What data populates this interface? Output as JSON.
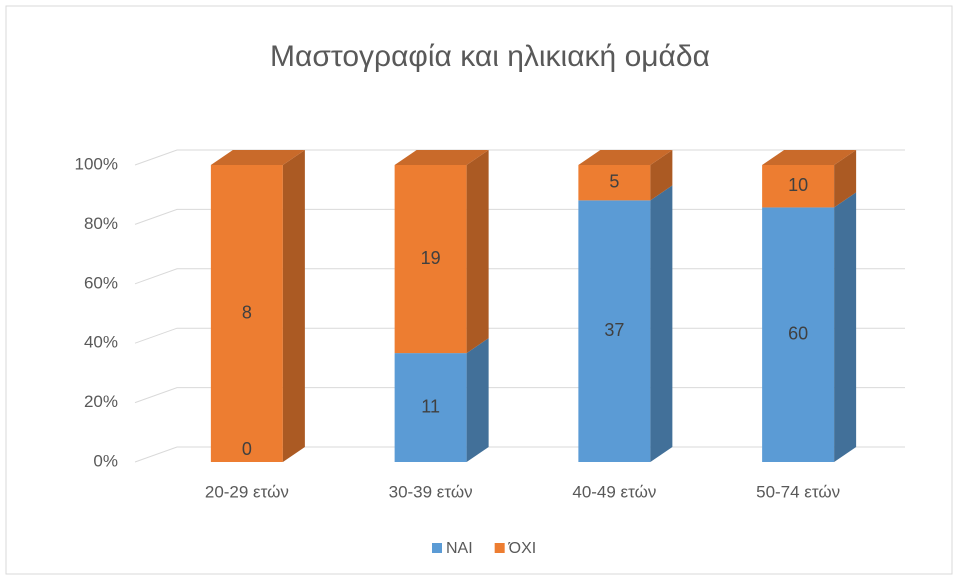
{
  "chart_data": {
    "type": "bar",
    "stacking": "percent",
    "title": "Μαστογραφία και ηλικιακή ομάδα",
    "categories": [
      "20-29 ετών",
      "30-39 ετών",
      "40-49 ετών",
      "50-74 ετών"
    ],
    "series": [
      {
        "name": "ΝΑΙ",
        "color": "#5b9bd5",
        "values": [
          0,
          11,
          37,
          60
        ]
      },
      {
        "name": "ΌΧΙ",
        "color": "#ed7d31",
        "values": [
          8,
          19,
          5,
          10
        ]
      }
    ],
    "ylim": [
      0,
      100
    ],
    "yticks": [
      {
        "value": 0,
        "label": "0%"
      },
      {
        "value": 20,
        "label": "20%"
      },
      {
        "value": 40,
        "label": "40%"
      },
      {
        "value": 60,
        "label": "60%"
      },
      {
        "value": 80,
        "label": "80%"
      },
      {
        "value": 100,
        "label": "100%"
      }
    ],
    "grid": true,
    "legend": "bottom"
  }
}
